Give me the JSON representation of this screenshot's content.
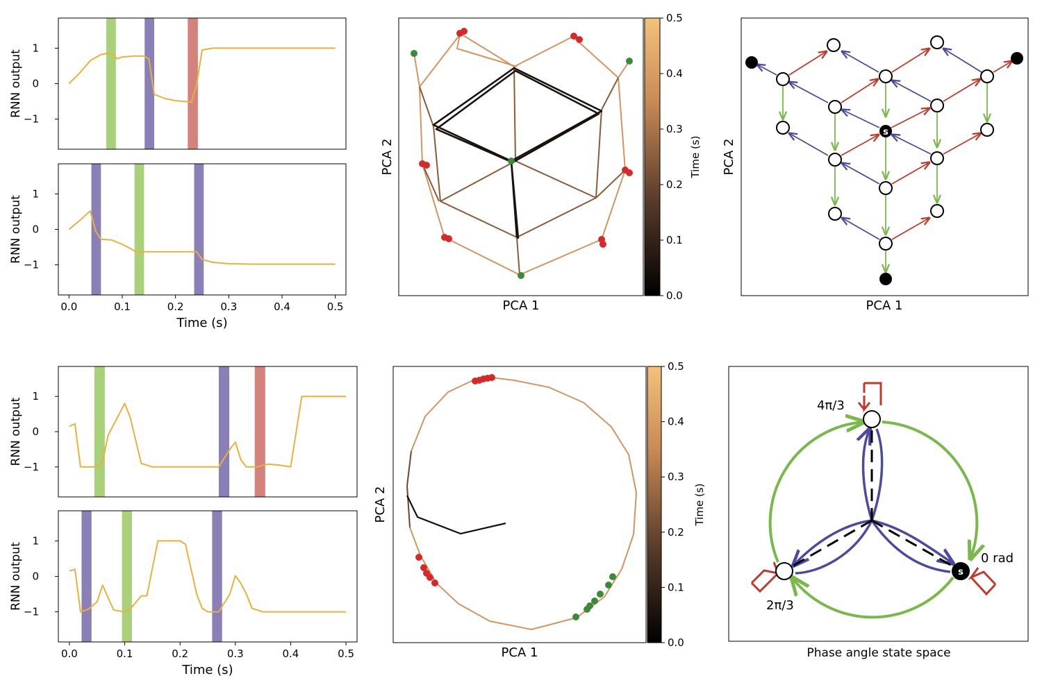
{
  "colors": {
    "trace": "#e8b23a",
    "green_pulse": "#a9d17a",
    "purple_pulse": "#8a7fb6",
    "red_pulse": "#d4837c",
    "red_arrow": "#c0392b",
    "blue_arrow": "#4b4aa0",
    "green_arrow": "#79b84a",
    "green_dot": "#3a8a3a",
    "red_dot": "#d42a2a",
    "cmap_dark": "#000000",
    "cmap_mid": "#8a5a3a",
    "cmap_light": "#f3c27a"
  },
  "chart_data": [
    {
      "type": "line",
      "id": "A1",
      "ylabel": "RNN output",
      "ylim": [
        -1.85,
        1.85
      ],
      "xlim": [
        -0.02,
        0.52
      ],
      "yticks": [
        "1",
        "0",
        "−1"
      ],
      "x": [
        0,
        0.02,
        0.04,
        0.06,
        0.07,
        0.08,
        0.09,
        0.1,
        0.12,
        0.14,
        0.15,
        0.16,
        0.18,
        0.2,
        0.23,
        0.24,
        0.25,
        0.27,
        0.3,
        0.35,
        0.4,
        0.45,
        0.5
      ],
      "values": [
        0,
        0.3,
        0.65,
        0.82,
        0.85,
        0.85,
        0.7,
        0.75,
        0.78,
        0.78,
        0.7,
        -0.3,
        -0.42,
        -0.48,
        -0.52,
        0,
        0.95,
        1,
        1,
        1,
        1,
        1,
        1
      ],
      "pulses": [
        {
          "color": "green",
          "start": 0.07,
          "end": 0.088
        },
        {
          "color": "purple",
          "start": 0.142,
          "end": 0.16
        },
        {
          "color": "red",
          "start": 0.223,
          "end": 0.242
        }
      ]
    },
    {
      "type": "line",
      "id": "A2",
      "ylabel": "RNN output",
      "ylim": [
        -1.85,
        1.85
      ],
      "xlim": [
        -0.02,
        0.52
      ],
      "yticks": [
        "1",
        "0",
        "−1"
      ],
      "xticks": [
        "0.0",
        "0.1",
        "0.2",
        "0.3",
        "0.4",
        "0.5"
      ],
      "xlabel": "Time (s)",
      "x": [
        0,
        0.02,
        0.04,
        0.05,
        0.06,
        0.08,
        0.1,
        0.12,
        0.13,
        0.14,
        0.16,
        0.2,
        0.24,
        0.25,
        0.27,
        0.3,
        0.35,
        0.4,
        0.45,
        0.5
      ],
      "values": [
        0,
        0.25,
        0.52,
        -0.05,
        -0.28,
        -0.3,
        -0.42,
        -0.58,
        -0.68,
        -0.63,
        -0.63,
        -0.63,
        -0.63,
        -0.85,
        -0.93,
        -0.97,
        -0.98,
        -0.98,
        -0.98,
        -0.98
      ],
      "pulses": [
        {
          "color": "purple",
          "start": 0.042,
          "end": 0.06
        },
        {
          "color": "green",
          "start": 0.123,
          "end": 0.141
        },
        {
          "color": "purple",
          "start": 0.235,
          "end": 0.253
        }
      ]
    },
    {
      "type": "line",
      "id": "B1",
      "ylabel": "RNN output",
      "ylim": [
        -1.85,
        1.85
      ],
      "xlim": [
        -0.02,
        0.52
      ],
      "yticks": [
        "1",
        "0",
        "−1"
      ],
      "x": [
        0,
        0.01,
        0.02,
        0.04,
        0.05,
        0.06,
        0.07,
        0.08,
        0.1,
        0.11,
        0.13,
        0.15,
        0.2,
        0.25,
        0.27,
        0.29,
        0.3,
        0.31,
        0.32,
        0.33,
        0.34,
        0.35,
        0.36,
        0.38,
        0.4,
        0.42,
        0.45,
        0.5
      ],
      "values": [
        0.15,
        0.22,
        -1,
        -1,
        -1,
        -0.85,
        -0.1,
        0.2,
        0.8,
        0.4,
        -0.9,
        -1,
        -1,
        -1,
        -1,
        -0.5,
        -0.3,
        -0.8,
        -1,
        -1,
        -1,
        -0.95,
        -0.92,
        -0.95,
        -1,
        1,
        1,
        1
      ],
      "pulses": [
        {
          "color": "green",
          "start": 0.045,
          "end": 0.064
        },
        {
          "color": "purple",
          "start": 0.27,
          "end": 0.289
        },
        {
          "color": "red",
          "start": 0.335,
          "end": 0.354
        }
      ]
    },
    {
      "type": "line",
      "id": "B2",
      "ylabel": "RNN output",
      "ylim": [
        -1.85,
        1.85
      ],
      "xlim": [
        -0.02,
        0.52
      ],
      "yticks": [
        "1",
        "0",
        "−1"
      ],
      "xticks": [
        "0.0",
        "0.1",
        "0.2",
        "0.3",
        "0.4",
        "0.5"
      ],
      "xlabel": "Time (s)",
      "x": [
        0,
        0.01,
        0.02,
        0.035,
        0.05,
        0.06,
        0.08,
        0.1,
        0.11,
        0.13,
        0.14,
        0.16,
        0.18,
        0.2,
        0.21,
        0.23,
        0.24,
        0.25,
        0.27,
        0.29,
        0.3,
        0.31,
        0.32,
        0.33,
        0.35,
        0.4,
        0.45,
        0.5
      ],
      "values": [
        0.15,
        0.2,
        -1,
        -0.92,
        -0.72,
        -0.25,
        -0.95,
        -1,
        -0.92,
        -0.55,
        -0.55,
        1,
        1,
        1,
        0.9,
        -0.5,
        -0.9,
        -1,
        -1,
        -0.5,
        0.02,
        -0.2,
        -0.5,
        -0.9,
        -1,
        -1,
        -1,
        -1
      ],
      "pulses": [
        {
          "color": "purple",
          "start": 0.022,
          "end": 0.04
        },
        {
          "color": "green",
          "start": 0.095,
          "end": 0.113
        },
        {
          "color": "purple",
          "start": 0.258,
          "end": 0.276
        }
      ]
    }
  ],
  "pca_top": {
    "xlabel": "PCA 1",
    "ylabel": "PCA 2",
    "colorbar_label": "Time (s)",
    "colorbar_ticks": [
      "0.0",
      "0.1",
      "0.2",
      "0.3",
      "0.4",
      "0.5"
    ]
  },
  "pca_bottom": {
    "xlabel": "PCA 1",
    "ylabel": "PCA 2",
    "colorbar_label": "Time (s)",
    "colorbar_ticks": [
      "0.0",
      "0.1",
      "0.2",
      "0.3",
      "0.4",
      "0.5"
    ]
  },
  "state_top": {
    "xlabel": "PCA 1",
    "ylabel": "PCA 2",
    "start_label": "s"
  },
  "state_bottom": {
    "xlabel": "Phase angle state space",
    "start_label": "s",
    "label_zero": "0 rad",
    "label_2pi3": "2π/3",
    "label_4pi3": "4π/3"
  }
}
